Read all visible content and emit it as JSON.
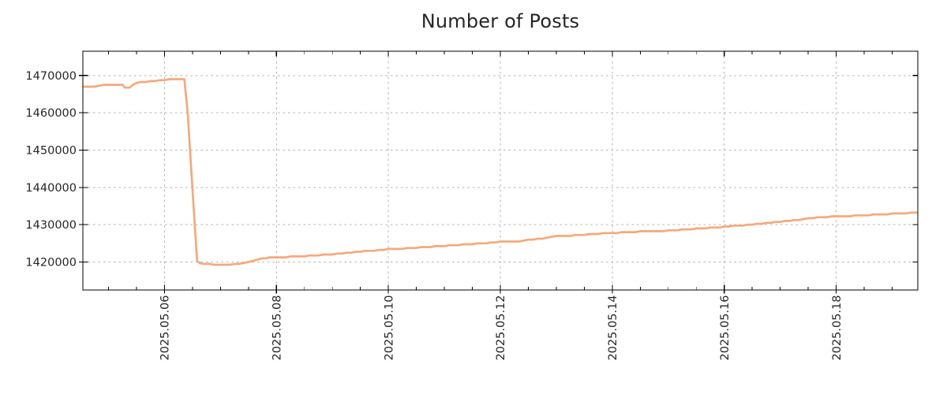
{
  "chart_data": {
    "type": "line",
    "title": "Number of Posts",
    "xlabel": "",
    "ylabel": "",
    "legend": "none",
    "grid": "dashed-major-both-axes",
    "xlim": [
      "2025-05-04 13:00",
      "2025-05-19 11:00"
    ],
    "ylim": [
      1412500,
      1476500
    ],
    "y_ticks": [
      {
        "value": 1420000,
        "label": "1420000"
      },
      {
        "value": 1430000,
        "label": "1430000"
      },
      {
        "value": 1440000,
        "label": "1440000"
      },
      {
        "value": 1450000,
        "label": "1450000"
      },
      {
        "value": 1460000,
        "label": "1460000"
      },
      {
        "value": 1470000,
        "label": "1470000"
      }
    ],
    "x_ticks": [
      {
        "date": "2025-05-06",
        "label": "2025.05.06"
      },
      {
        "date": "2025-05-08",
        "label": "2025.05.08"
      },
      {
        "date": "2025-05-10",
        "label": "2025.05.10"
      },
      {
        "date": "2025-05-12",
        "label": "2025.05.12"
      },
      {
        "date": "2025-05-14",
        "label": "2025.05.14"
      },
      {
        "date": "2025-05-16",
        "label": "2025.05.16"
      },
      {
        "date": "2025-05-18",
        "label": "2025.05.18"
      }
    ],
    "x_minor_step_hours": 12,
    "series": [
      {
        "name": "number-of-posts",
        "color": "#f5a97c",
        "points": [
          [
            "2025-05-04 13:00",
            1467050
          ],
          [
            "2025-05-04 18:00",
            1467100
          ],
          [
            "2025-05-04 22:00",
            1467400
          ],
          [
            "2025-05-05 03:00",
            1467450
          ],
          [
            "2025-05-05 06:00",
            1467400
          ],
          [
            "2025-05-05 07:00",
            1466850
          ],
          [
            "2025-05-05 09:00",
            1466750
          ],
          [
            "2025-05-05 10:30",
            1467600
          ],
          [
            "2025-05-05 12:00",
            1468050
          ],
          [
            "2025-05-05 16:00",
            1468300
          ],
          [
            "2025-05-05 20:00",
            1468600
          ],
          [
            "2025-05-06 00:00",
            1468850
          ],
          [
            "2025-05-06 04:00",
            1468900
          ],
          [
            "2025-05-06 07:00",
            1468950
          ],
          [
            "2025-05-06 08:30",
            1469050
          ],
          [
            "2025-05-06 10:00",
            1459500
          ],
          [
            "2025-05-06 11:00",
            1449500
          ],
          [
            "2025-05-06 12:00",
            1439500
          ],
          [
            "2025-05-06 13:00",
            1429500
          ],
          [
            "2025-05-06 14:00",
            1420300
          ],
          [
            "2025-05-06 15:00",
            1419700
          ],
          [
            "2025-05-06 18:00",
            1419500
          ],
          [
            "2025-05-06 21:00",
            1419350
          ],
          [
            "2025-05-07 00:00",
            1419250
          ],
          [
            "2025-05-07 04:00",
            1419300
          ],
          [
            "2025-05-07 08:00",
            1419450
          ],
          [
            "2025-05-07 12:00",
            1419900
          ],
          [
            "2025-05-07 15:00",
            1420400
          ],
          [
            "2025-05-07 18:00",
            1420900
          ],
          [
            "2025-05-07 21:00",
            1421150
          ],
          [
            "2025-05-08 00:00",
            1421300
          ],
          [
            "2025-05-08 06:00",
            1421400
          ],
          [
            "2025-05-08 12:00",
            1421550
          ],
          [
            "2025-05-08 18:00",
            1421800
          ],
          [
            "2025-05-09 00:00",
            1422100
          ],
          [
            "2025-05-09 08:00",
            1422500
          ],
          [
            "2025-05-09 16:00",
            1423000
          ],
          [
            "2025-05-10 00:00",
            1423400
          ],
          [
            "2025-05-10 08:00",
            1423650
          ],
          [
            "2025-05-10 16:00",
            1423950
          ],
          [
            "2025-05-11 00:00",
            1424300
          ],
          [
            "2025-05-11 08:00",
            1424650
          ],
          [
            "2025-05-11 16:00",
            1425000
          ],
          [
            "2025-05-12 00:00",
            1425380
          ],
          [
            "2025-05-12 08:00",
            1425600
          ],
          [
            "2025-05-12 16:00",
            1426150
          ],
          [
            "2025-05-13 00:00",
            1426900
          ],
          [
            "2025-05-13 12:00",
            1427300
          ],
          [
            "2025-05-14 00:00",
            1427800
          ],
          [
            "2025-05-14 12:00",
            1428150
          ],
          [
            "2025-05-15 00:00",
            1428400
          ],
          [
            "2025-05-15 12:00",
            1428900
          ],
          [
            "2025-05-16 00:00",
            1429450
          ],
          [
            "2025-05-16 12:00",
            1430000
          ],
          [
            "2025-05-17 00:00",
            1430800
          ],
          [
            "2025-05-17 08:00",
            1431300
          ],
          [
            "2025-05-17 16:00",
            1431950
          ],
          [
            "2025-05-18 00:00",
            1432250
          ],
          [
            "2025-05-18 08:00",
            1432400
          ],
          [
            "2025-05-18 16:00",
            1432650
          ],
          [
            "2025-05-19 00:00",
            1432900
          ],
          [
            "2025-05-19 06:00",
            1433100
          ],
          [
            "2025-05-19 11:00",
            1433300
          ]
        ]
      }
    ]
  },
  "style": {
    "background": "#ffffff",
    "line_color": "#f5a97c",
    "grid_color": "#b0b0b0",
    "border_color": "#000000",
    "tick_color": "#000000",
    "text_color": "#262626"
  }
}
